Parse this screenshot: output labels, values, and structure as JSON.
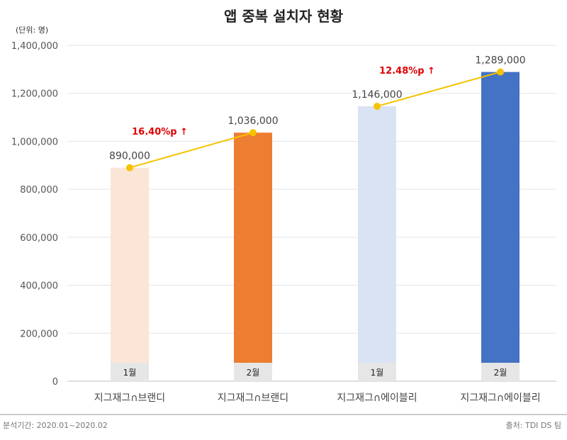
{
  "chart_data": {
    "type": "bar",
    "title": "앱 중복 설치자 현황",
    "unit_label": "(단위: 명)",
    "ylim": [
      0,
      1400000
    ],
    "yticks": [
      0,
      200000,
      400000,
      600000,
      800000,
      1000000,
      1200000,
      1400000
    ],
    "ytick_labels": [
      "0",
      "200,000",
      "400,000",
      "600,000",
      "800,000",
      "1,000,000",
      "1,200,000",
      "1,400,000"
    ],
    "grid": true,
    "categories": [
      "지그재그∩브랜디",
      "지그재그∩브랜디",
      "지그재그∩에이블리",
      "지그재그∩에이블리"
    ],
    "month_labels": [
      "1월",
      "2월",
      "1월",
      "2월"
    ],
    "values": [
      890000,
      1036000,
      1146000,
      1289000
    ],
    "value_labels": [
      "890,000",
      "1,036,000",
      "1,146,000",
      "1,289,000"
    ],
    "bar_colors": [
      "#fbe5d6",
      "#ed7d31",
      "#dae3f3",
      "#4472c4"
    ],
    "trend_lines": [
      {
        "from": 0,
        "to": 1,
        "label": "16.40%p ↑",
        "color": "#f5c300"
      },
      {
        "from": 2,
        "to": 3,
        "label": "12.48%p ↑",
        "color": "#f5c300"
      }
    ],
    "footer_left": "분석기간: 2020.01~2020.02",
    "footer_right": "출처: TDI DS 팀"
  }
}
